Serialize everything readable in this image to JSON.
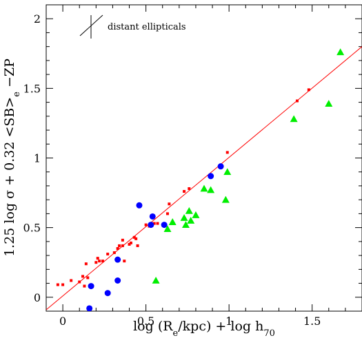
{
  "chart_data": {
    "type": "scatter",
    "title": "",
    "xlabel": "log (R_e/kpc) + log h_70",
    "ylabel": "1.25 log σ + 0.32 <SB>_e −ZP",
    "xlim": [
      -0.1,
      1.8
    ],
    "ylim": [
      -0.1,
      2.1
    ],
    "x_ticks": [
      0,
      0.5,
      1,
      1.5
    ],
    "x_tick_labels": [
      "0",
      "0.5",
      "1",
      "1.5"
    ],
    "y_ticks": [
      0,
      0.5,
      1,
      1.5,
      2
    ],
    "y_tick_labels": [
      "0",
      "0.5",
      "1",
      "1.5",
      "2"
    ],
    "grid": false,
    "legend": {
      "label": "distant ellipticals",
      "placement": "top-left",
      "symbol": "error-cross"
    },
    "fit_line": {
      "points": [
        [
          -0.1,
          -0.09
        ],
        [
          1.8,
          1.8
        ]
      ],
      "color": "#ff0000"
    },
    "series": [
      {
        "marker": "square",
        "color": "#ff0000",
        "points": [
          [
            -0.03,
            0.09
          ],
          [
            0.0,
            0.09
          ],
          [
            0.05,
            0.12
          ],
          [
            0.1,
            0.11
          ],
          [
            0.12,
            0.15
          ],
          [
            0.13,
            0.08
          ],
          [
            0.14,
            0.24
          ],
          [
            0.15,
            0.14
          ],
          [
            0.2,
            0.25
          ],
          [
            0.21,
            0.28
          ],
          [
            0.22,
            0.26
          ],
          [
            0.24,
            0.26
          ],
          [
            0.27,
            0.31
          ],
          [
            0.31,
            0.32
          ],
          [
            0.33,
            0.35
          ],
          [
            0.34,
            0.37
          ],
          [
            0.36,
            0.37
          ],
          [
            0.36,
            0.41
          ],
          [
            0.37,
            0.26
          ],
          [
            0.4,
            0.38
          ],
          [
            0.41,
            0.39
          ],
          [
            0.43,
            0.43
          ],
          [
            0.44,
            0.42
          ],
          [
            0.45,
            0.37
          ],
          [
            0.5,
            0.52
          ],
          [
            0.52,
            0.51
          ],
          [
            0.55,
            0.53
          ],
          [
            0.57,
            0.53
          ],
          [
            0.63,
            0.6
          ],
          [
            0.64,
            0.67
          ],
          [
            0.73,
            0.76
          ],
          [
            0.76,
            0.78
          ],
          [
            0.99,
            1.04
          ],
          [
            1.41,
            1.41
          ],
          [
            1.48,
            1.49
          ]
        ]
      },
      {
        "marker": "circle",
        "color": "#0000ff",
        "points": [
          [
            0.16,
            -0.08
          ],
          [
            0.17,
            0.08
          ],
          [
            0.27,
            0.03
          ],
          [
            0.33,
            0.12
          ],
          [
            0.33,
            0.27
          ],
          [
            0.46,
            0.66
          ],
          [
            0.53,
            0.52
          ],
          [
            0.54,
            0.58
          ],
          [
            0.61,
            0.52
          ],
          [
            0.89,
            0.87
          ],
          [
            0.95,
            0.94
          ]
        ]
      },
      {
        "marker": "triangle",
        "color": "#00ee00",
        "points": [
          [
            0.56,
            0.12
          ],
          [
            0.63,
            0.49
          ],
          [
            0.66,
            0.54
          ],
          [
            0.73,
            0.57
          ],
          [
            0.74,
            0.52
          ],
          [
            0.76,
            0.62
          ],
          [
            0.77,
            0.55
          ],
          [
            0.8,
            0.59
          ],
          [
            0.85,
            0.78
          ],
          [
            0.89,
            0.77
          ],
          [
            0.98,
            0.7
          ],
          [
            0.99,
            0.9
          ],
          [
            1.39,
            1.28
          ],
          [
            1.6,
            1.39
          ],
          [
            1.67,
            1.76
          ]
        ]
      }
    ]
  }
}
